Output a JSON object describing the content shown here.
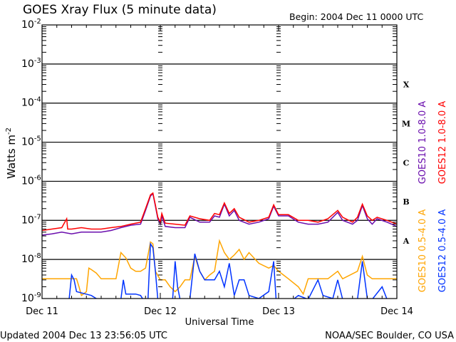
{
  "chart_data": {
    "type": "line",
    "title": "GOES Xray Flux (5 minute data)",
    "begin_label": "Begin:  2004 Dec 11 0000 UTC",
    "xlabel": "Universal Time",
    "ylabel": "Watts m",
    "ylabel_sup": "-2",
    "x_unit": "hours since 2004 Dec 11 0000 UTC",
    "xlim": [
      0,
      72
    ],
    "ylim": [
      1e-09,
      0.01
    ],
    "yscale": "log",
    "x_ticks": [
      {
        "value": 0,
        "label": "Dec 11"
      },
      {
        "value": 24,
        "label": "Dec 12"
      },
      {
        "value": 48,
        "label": "Dec 13"
      },
      {
        "value": 72,
        "label": "Dec 14"
      }
    ],
    "y_ticks": [
      {
        "value": 0.01,
        "base": "10",
        "exp": "-2"
      },
      {
        "value": 0.001,
        "base": "10",
        "exp": "-3"
      },
      {
        "value": 0.0001,
        "base": "10",
        "exp": "-4"
      },
      {
        "value": 1e-05,
        "base": "10",
        "exp": "-5"
      },
      {
        "value": 1e-06,
        "base": "10",
        "exp": "-6"
      },
      {
        "value": 1e-07,
        "base": "10",
        "exp": "-7"
      },
      {
        "value": 1e-08,
        "base": "10",
        "exp": "-8"
      },
      {
        "value": 1e-09,
        "base": "10",
        "exp": "-9"
      }
    ],
    "flare_classes": [
      {
        "label": "X",
        "value": 0.0003
      },
      {
        "label": "M",
        "value": 3e-05
      },
      {
        "label": "C",
        "value": 3e-06
      },
      {
        "label": "B",
        "value": 3e-07
      },
      {
        "label": "A",
        "value": 3e-08
      }
    ],
    "grid": true,
    "legend_placement": "right",
    "series": [
      {
        "name": "GOES10 1.0-8.0 A",
        "color": "#6a0dad",
        "points": [
          [
            0,
            4.2e-08
          ],
          [
            2,
            4.5e-08
          ],
          [
            4,
            5e-08
          ],
          [
            6,
            4.5e-08
          ],
          [
            8,
            5e-08
          ],
          [
            10,
            5e-08
          ],
          [
            12,
            5e-08
          ],
          [
            14,
            5.5e-08
          ],
          [
            16,
            6.5e-08
          ],
          [
            18,
            7.5e-08
          ],
          [
            20,
            8e-08
          ],
          [
            21,
            1.8e-07
          ],
          [
            22,
            4.2e-07
          ],
          [
            22.5,
            4.8e-07
          ],
          [
            23,
            2.3e-07
          ],
          [
            23.5,
            1.1e-07
          ],
          [
            24,
            8e-08
          ],
          [
            24.3,
            1.3e-07
          ],
          [
            25,
            7e-08
          ],
          [
            27,
            6.5e-08
          ],
          [
            29,
            6.5e-08
          ],
          [
            30,
            1.2e-07
          ],
          [
            32,
            9e-08
          ],
          [
            34,
            9e-08
          ],
          [
            35,
            1.3e-07
          ],
          [
            36,
            1.2e-07
          ],
          [
            37,
            2.6e-07
          ],
          [
            38,
            1.3e-07
          ],
          [
            39,
            1.8e-07
          ],
          [
            40,
            1e-07
          ],
          [
            42,
            8e-08
          ],
          [
            44,
            9e-08
          ],
          [
            46,
            1.1e-07
          ],
          [
            47,
            2.3e-07
          ],
          [
            48,
            1.3e-07
          ],
          [
            50,
            1.3e-07
          ],
          [
            52,
            9e-08
          ],
          [
            54,
            8e-08
          ],
          [
            56,
            8e-08
          ],
          [
            58,
            9e-08
          ],
          [
            60,
            1.6e-07
          ],
          [
            61,
            1e-07
          ],
          [
            63,
            8e-08
          ],
          [
            64,
            1e-07
          ],
          [
            65,
            2.4e-07
          ],
          [
            66,
            1.1e-07
          ],
          [
            67,
            8e-08
          ],
          [
            68,
            1.1e-07
          ],
          [
            70,
            9e-08
          ],
          [
            72,
            7e-08
          ]
        ]
      },
      {
        "name": "GOES12 1.0-8.0 A",
        "color": "#ff0000",
        "points": [
          [
            0,
            5.5e-08
          ],
          [
            2,
            6e-08
          ],
          [
            4,
            6.5e-08
          ],
          [
            5,
            1.1e-07
          ],
          [
            5.2,
            6e-08
          ],
          [
            6,
            6e-08
          ],
          [
            8,
            6.5e-08
          ],
          [
            10,
            6e-08
          ],
          [
            12,
            6e-08
          ],
          [
            14,
            6.5e-08
          ],
          [
            16,
            7e-08
          ],
          [
            18,
            8e-08
          ],
          [
            20,
            9e-08
          ],
          [
            21,
            2e-07
          ],
          [
            22,
            4.5e-07
          ],
          [
            22.5,
            5e-07
          ],
          [
            23,
            2.5e-07
          ],
          [
            23.5,
            1.2e-07
          ],
          [
            24,
            9e-08
          ],
          [
            24.3,
            1.5e-07
          ],
          [
            25,
            8.5e-08
          ],
          [
            27,
            8e-08
          ],
          [
            29,
            7.5e-08
          ],
          [
            30,
            1.3e-07
          ],
          [
            32,
            1.1e-07
          ],
          [
            34,
            1e-07
          ],
          [
            35,
            1.5e-07
          ],
          [
            36,
            1.4e-07
          ],
          [
            37,
            2.8e-07
          ],
          [
            38,
            1.5e-07
          ],
          [
            39,
            2e-07
          ],
          [
            40,
            1.2e-07
          ],
          [
            42,
            9e-08
          ],
          [
            44,
            1e-07
          ],
          [
            46,
            1.2e-07
          ],
          [
            47,
            2.5e-07
          ],
          [
            48,
            1.4e-07
          ],
          [
            50,
            1.4e-07
          ],
          [
            52,
            1e-07
          ],
          [
            54,
            1e-07
          ],
          [
            56,
            9e-08
          ],
          [
            58,
            1.1e-07
          ],
          [
            60,
            1.8e-07
          ],
          [
            61,
            1.2e-07
          ],
          [
            63,
            9e-08
          ],
          [
            64,
            1.2e-07
          ],
          [
            65,
            2.6e-07
          ],
          [
            66,
            1.3e-07
          ],
          [
            67,
            1e-07
          ],
          [
            68,
            1.2e-07
          ],
          [
            70,
            1e-07
          ],
          [
            72,
            8e-08
          ]
        ]
      },
      {
        "name": "GOES10 0.5-4.0 A",
        "color": "#ffa500",
        "points": [
          [
            0,
            3.2e-09
          ],
          [
            7,
            3.2e-09
          ],
          [
            7.5,
            2e-09
          ],
          [
            8,
            1.2e-09
          ],
          [
            9,
            1.5e-09
          ],
          [
            9.5,
            6e-09
          ],
          [
            10,
            5.5e-09
          ],
          [
            11,
            4.5e-09
          ],
          [
            12,
            3.2e-09
          ],
          [
            15,
            3.2e-09
          ],
          [
            16,
            1.5e-08
          ],
          [
            17,
            1.1e-08
          ],
          [
            18,
            6e-09
          ],
          [
            19,
            5e-09
          ],
          [
            20,
            5e-09
          ],
          [
            21,
            6e-09
          ],
          [
            22,
            2.8e-08
          ],
          [
            22.5,
            2.5e-08
          ],
          [
            23,
            5e-09
          ],
          [
            24,
            3e-09
          ],
          [
            25,
            3e-09
          ],
          [
            26,
            2e-09
          ],
          [
            27,
            1.5e-09
          ],
          [
            28,
            2e-09
          ],
          [
            29,
            3e-09
          ],
          [
            30,
            3e-09
          ],
          [
            31,
            1.2e-08
          ],
          [
            32,
            5e-09
          ],
          [
            33,
            3e-09
          ],
          [
            34,
            4e-09
          ],
          [
            35,
            5e-09
          ],
          [
            36,
            3e-08
          ],
          [
            37,
            1.5e-08
          ],
          [
            38,
            1e-08
          ],
          [
            39,
            1.3e-08
          ],
          [
            40,
            1.8e-08
          ],
          [
            41,
            1e-08
          ],
          [
            42,
            1.5e-08
          ],
          [
            44,
            8e-09
          ],
          [
            46,
            6e-09
          ],
          [
            47,
            7e-09
          ],
          [
            48,
            5e-09
          ],
          [
            49,
            4e-09
          ],
          [
            50,
            3.2e-09
          ],
          [
            52,
            2e-09
          ],
          [
            53,
            1.3e-09
          ],
          [
            54,
            3.2e-09
          ],
          [
            58,
            3.2e-09
          ],
          [
            60,
            5e-09
          ],
          [
            61,
            3.2e-09
          ],
          [
            64,
            5e-09
          ],
          [
            65,
            1.2e-08
          ],
          [
            66,
            4e-09
          ],
          [
            67,
            3.2e-09
          ],
          [
            72,
            3.2e-09
          ]
        ]
      },
      {
        "name": "GOES12 0.5-4.0 A",
        "color": "#0033ff",
        "points": [
          [
            0,
            5e-10
          ],
          [
            5.5,
            5e-10
          ],
          [
            6,
            4e-09
          ],
          [
            6.5,
            3e-09
          ],
          [
            7,
            1.5e-09
          ],
          [
            10,
            1.2e-09
          ],
          [
            11,
            1e-09
          ],
          [
            12,
            7e-10
          ],
          [
            16,
            7e-10
          ],
          [
            16.5,
            3e-09
          ],
          [
            17,
            1.3e-09
          ],
          [
            19,
            1.3e-09
          ],
          [
            20,
            1.2e-09
          ],
          [
            20.5,
            5e-10
          ],
          [
            21.5,
            5e-10
          ],
          [
            22,
            2.5e-08
          ],
          [
            22.5,
            2e-08
          ],
          [
            23,
            5e-09
          ],
          [
            23.5,
            5e-10
          ],
          [
            24,
            1e-09
          ],
          [
            24.5,
            5e-10
          ],
          [
            26.5,
            5e-10
          ],
          [
            27,
            9e-09
          ],
          [
            27.5,
            2e-09
          ],
          [
            28,
            5e-10
          ],
          [
            30,
            5e-10
          ],
          [
            31,
            1.4e-08
          ],
          [
            32,
            5e-09
          ],
          [
            33,
            3e-09
          ],
          [
            35,
            3e-09
          ],
          [
            36,
            5e-09
          ],
          [
            37,
            2e-09
          ],
          [
            38,
            8e-09
          ],
          [
            39,
            1.2e-09
          ],
          [
            40,
            3e-09
          ],
          [
            41,
            3e-09
          ],
          [
            42,
            1.2e-09
          ],
          [
            44,
            1e-09
          ],
          [
            46,
            1.5e-09
          ],
          [
            47,
            9e-09
          ],
          [
            47.5,
            5e-10
          ],
          [
            48,
            1e-09
          ],
          [
            49,
            5e-10
          ],
          [
            51,
            5e-10
          ],
          [
            52,
            1.2e-09
          ],
          [
            54,
            5e-10
          ],
          [
            56,
            3e-09
          ],
          [
            57,
            1.2e-09
          ],
          [
            59,
            1e-09
          ],
          [
            60,
            3e-09
          ],
          [
            61,
            5e-10
          ],
          [
            64,
            5e-10
          ],
          [
            65,
            9e-09
          ],
          [
            66,
            1e-09
          ],
          [
            67,
            5e-10
          ],
          [
            69,
            2e-09
          ],
          [
            70,
            5e-10
          ],
          [
            72,
            5e-10
          ]
        ]
      }
    ]
  },
  "footer": {
    "updated": "Updated 2004 Dec 13 23:56:05 UTC",
    "credit": "NOAA/SEC Boulder, CO USA"
  }
}
